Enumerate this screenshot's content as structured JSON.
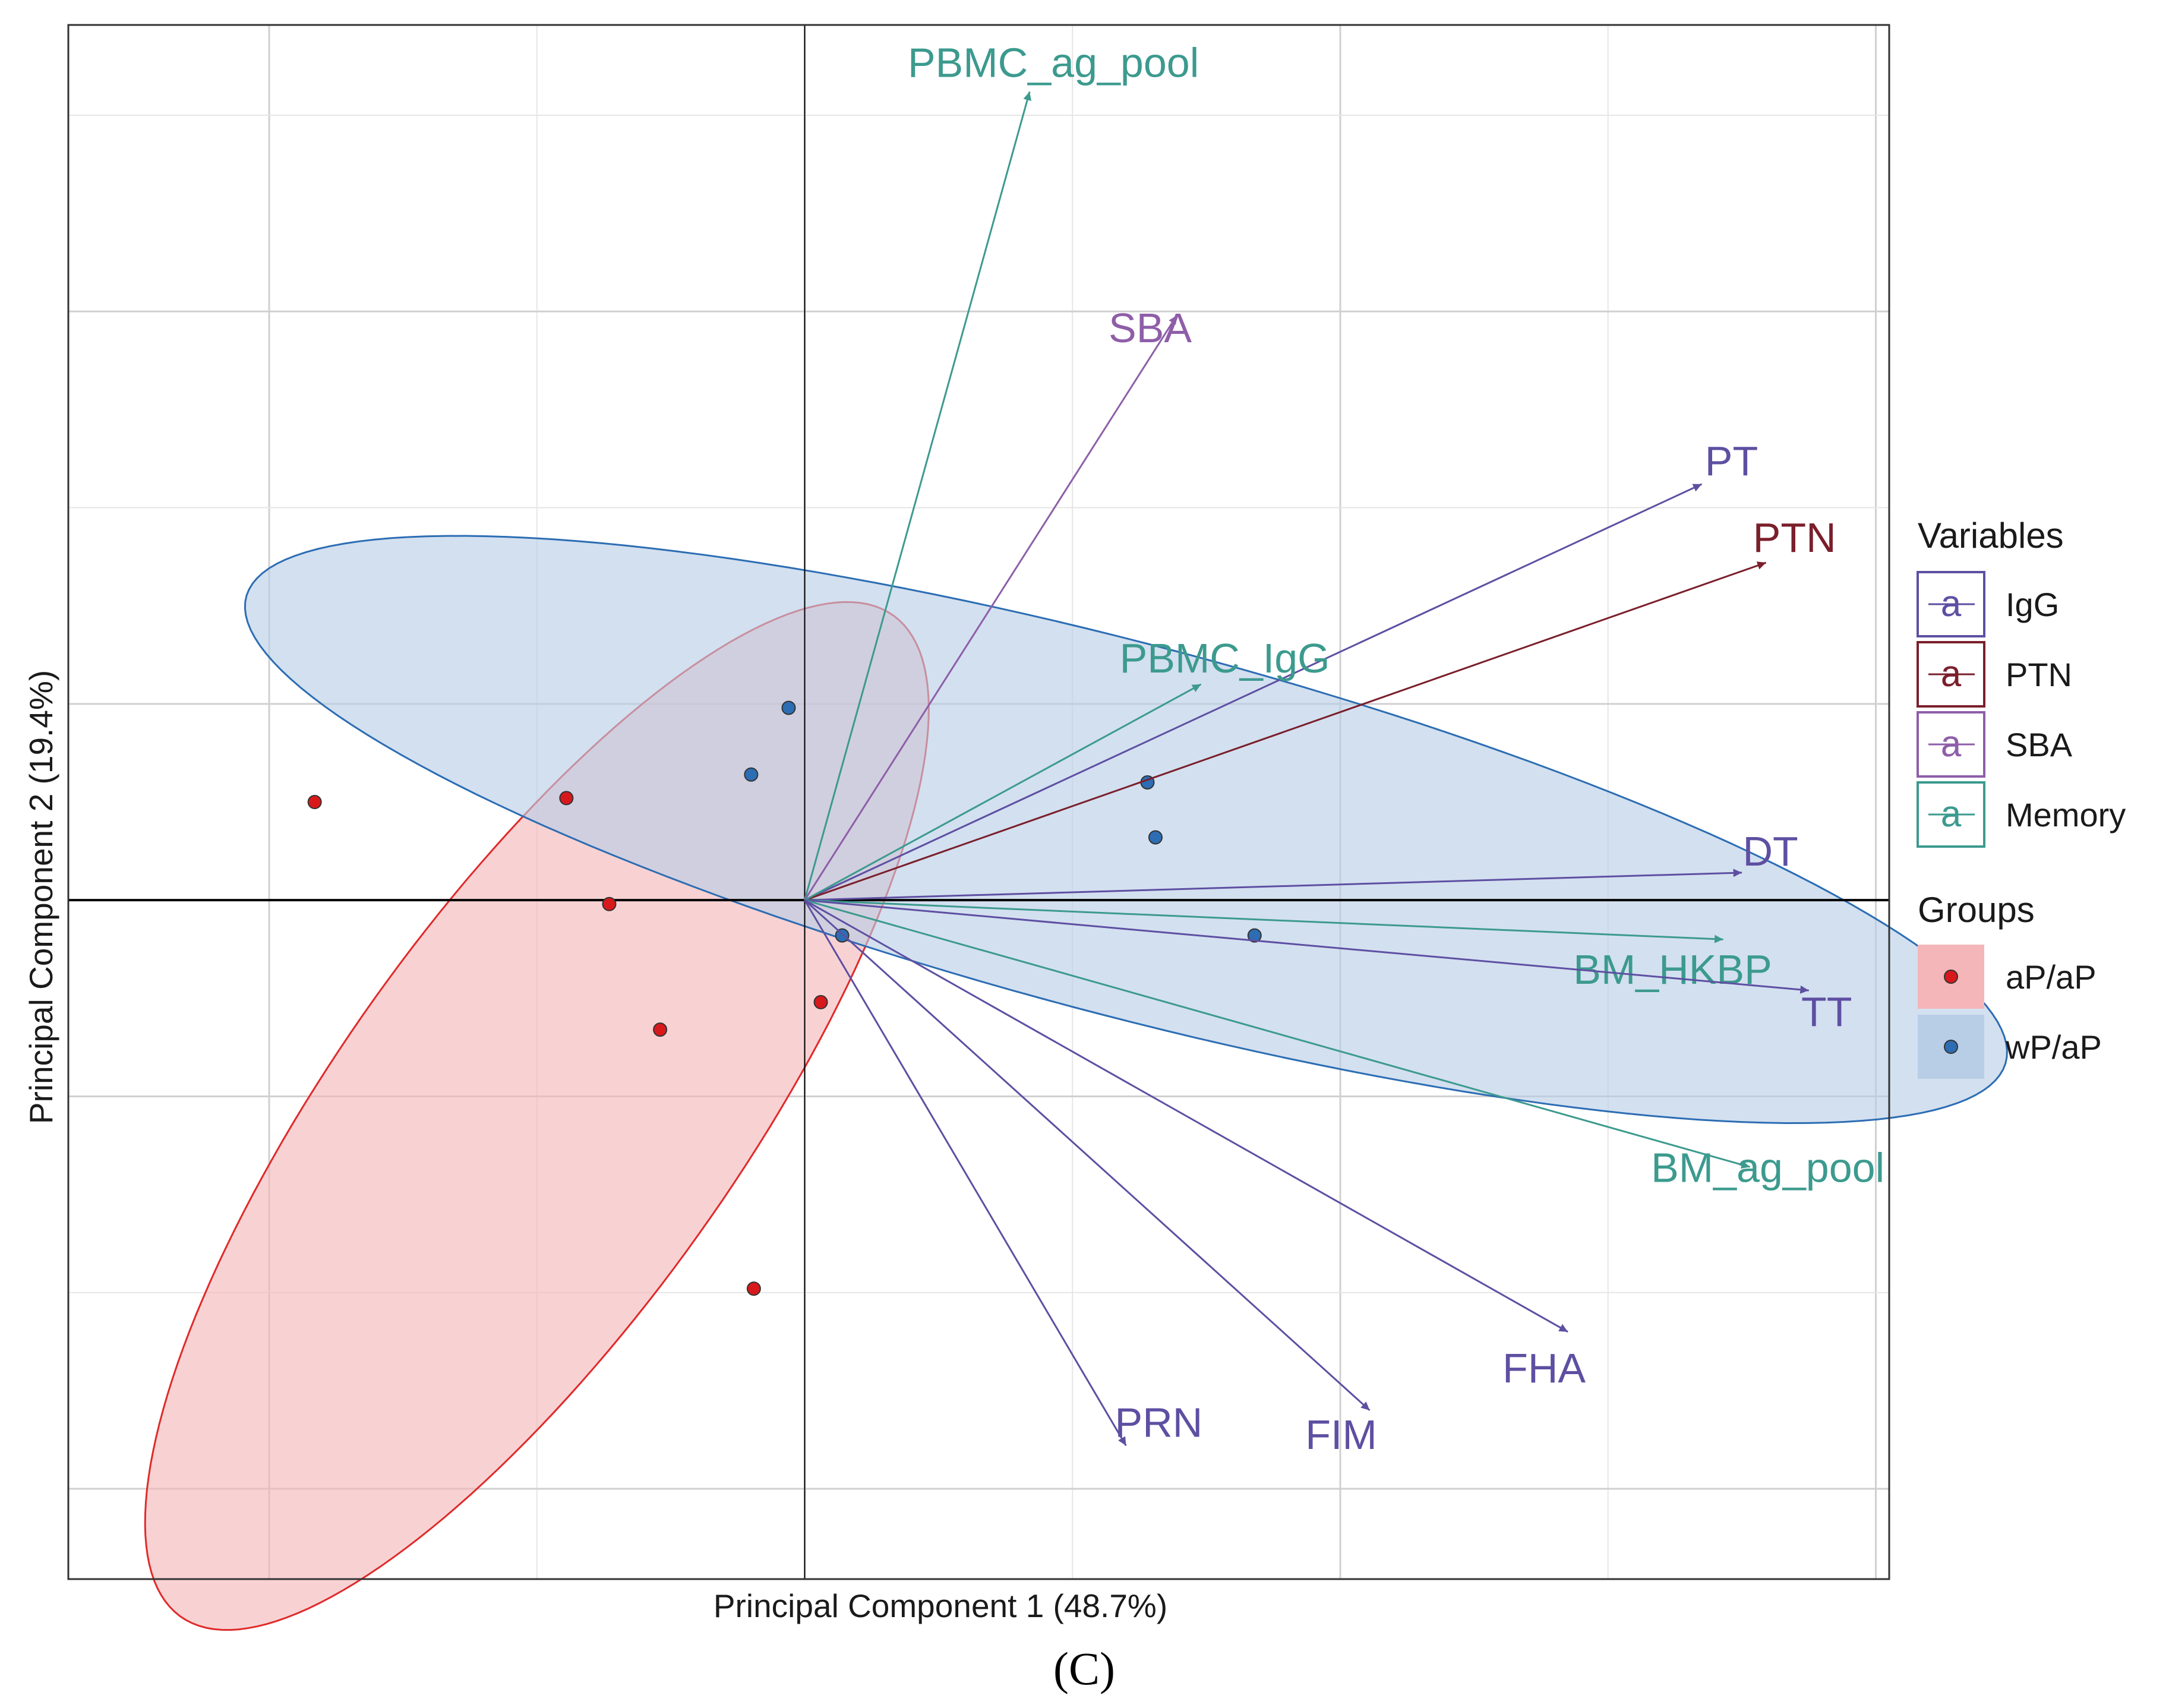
{
  "chart_data": {
    "type": "scatter",
    "subtype": "pca-biplot",
    "xlabel": "Principal Component 1 (48.7%)",
    "ylabel": "Principal Component 2 (19.4%)",
    "xlim": [
      -2.75,
      4.05
    ],
    "ylim": [
      -1.73,
      2.23
    ],
    "x_grid_major": [
      -2,
      0,
      2,
      4
    ],
    "x_grid_minor": [
      -1,
      1,
      3
    ],
    "y_grid_major": [
      -1.5,
      -0.5,
      0.5,
      1.5
    ],
    "y_grid_minor": [
      -1,
      0,
      1,
      2
    ],
    "grid": true,
    "tick_labels_shown": false,
    "reference_lines": {
      "x": 0,
      "y": 0
    },
    "points": [
      {
        "group": "aP/aP",
        "x": -1.83,
        "y": 0.25
      },
      {
        "group": "aP/aP",
        "x": -0.89,
        "y": 0.26
      },
      {
        "group": "aP/aP",
        "x": -0.73,
        "y": -0.01
      },
      {
        "group": "aP/aP",
        "x": -0.54,
        "y": -0.33
      },
      {
        "group": "aP/aP",
        "x": 0.06,
        "y": -0.26
      },
      {
        "group": "aP/aP",
        "x": -0.19,
        "y": -0.99
      },
      {
        "group": "wP/aP",
        "x": -0.06,
        "y": 0.49
      },
      {
        "group": "wP/aP",
        "x": -0.2,
        "y": 0.32
      },
      {
        "group": "wP/aP",
        "x": 0.14,
        "y": -0.09
      },
      {
        "group": "wP/aP",
        "x": 1.28,
        "y": 0.3
      },
      {
        "group": "wP/aP",
        "x": 1.31,
        "y": 0.16
      },
      {
        "group": "wP/aP",
        "x": 1.68,
        "y": -0.09
      }
    ],
    "ellipses": [
      {
        "group": "aP/aP",
        "cx": -1.0,
        "cy": -0.55,
        "rx": 1.86,
        "ry": 0.63,
        "angle_deg": 41
      },
      {
        "group": "wP/aP",
        "cx": 1.2,
        "cy": 0.18,
        "rx": 3.34,
        "ry": 0.48,
        "angle_deg": -10
      }
    ],
    "variables": [
      {
        "name": "PBMC_ag_pool",
        "type": "Memory",
        "x": 0.84,
        "y": 2.06
      },
      {
        "name": "SBA",
        "type": "SBA",
        "x": 1.39,
        "y": 1.49
      },
      {
        "name": "PT",
        "type": "IgG",
        "x": 3.35,
        "y": 1.06
      },
      {
        "name": "PTN",
        "type": "PTN",
        "x": 3.59,
        "y": 0.86
      },
      {
        "name": "PBMC_IgG",
        "type": "Memory",
        "x": 1.48,
        "y": 0.55
      },
      {
        "name": "DT",
        "type": "IgG",
        "x": 3.5,
        "y": 0.07
      },
      {
        "name": "BM_HKBP",
        "type": "Memory",
        "x": 3.43,
        "y": -0.1
      },
      {
        "name": "TT",
        "type": "IgG",
        "x": 3.75,
        "y": -0.23
      },
      {
        "name": "BM_ag_pool",
        "type": "Memory",
        "x": 3.53,
        "y": -0.68
      },
      {
        "name": "FHA",
        "type": "IgG",
        "x": 2.85,
        "y": -1.1
      },
      {
        "name": "FIM",
        "type": "IgG",
        "x": 2.11,
        "y": -1.3
      },
      {
        "name": "PRN",
        "type": "IgG",
        "x": 1.2,
        "y": -1.39
      }
    ],
    "legend": {
      "position": "right",
      "variables_title": "Variables",
      "variables": [
        {
          "name": "IgG",
          "color": "#5e4fa2"
        },
        {
          "name": "PTN",
          "color": "#7a1f2b"
        },
        {
          "name": "SBA",
          "color": "#8e5ea8"
        },
        {
          "name": "Memory",
          "color": "#3c9a8e"
        }
      ],
      "groups_title": "Groups",
      "groups": [
        {
          "name": "aP/aP",
          "point_color": "#d7191c",
          "fill": "#f4b6b8"
        },
        {
          "name": "wP/aP",
          "point_color": "#2c6db3",
          "fill": "#b8cde6"
        }
      ],
      "key_glyph": "a"
    },
    "caption": "(C)"
  },
  "colors": {
    "IgG": "#5e4fa2",
    "PTN": "#7a1f2b",
    "SBA": "#8e5ea8",
    "Memory": "#3c9a8e",
    "aP_point": "#d7191c",
    "aP_fill": "#f4b6b8",
    "aP_stroke": "#e02a2a",
    "wP_point": "#2c6db3",
    "wP_fill": "#b8cde6",
    "wP_stroke": "#2c6db3"
  }
}
